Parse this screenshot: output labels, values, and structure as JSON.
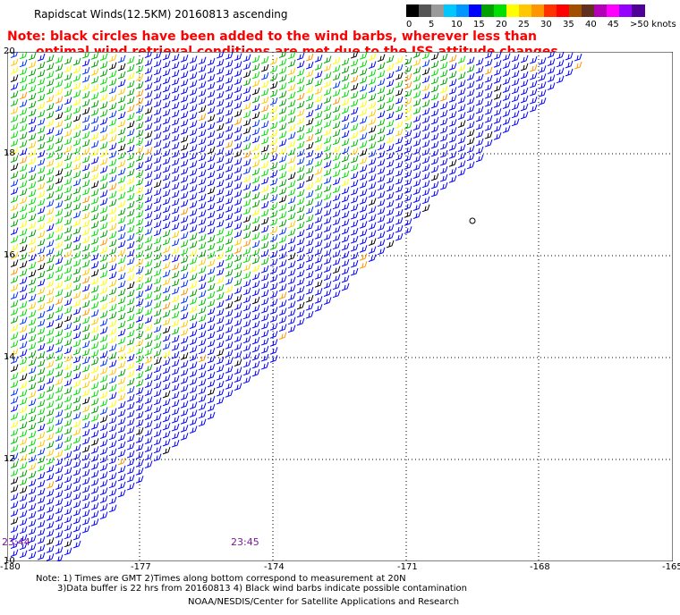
{
  "title": "Rapidscat Winds(12.5KM) 20160813 ascending",
  "note_line1": "Note: black circles have been added to the wind barbs, wherever less than",
  "note_line2": "optimal wind retrieval conditions are met due to the ISS attitude changes.",
  "colorbar": {
    "segments": [
      "#000000",
      "#555555",
      "#9a9a9a",
      "#00c8ff",
      "#0096ff",
      "#0000ff",
      "#00a000",
      "#00e000",
      "#ffff00",
      "#ffc800",
      "#ff9600",
      "#ff3200",
      "#ff0000",
      "#a05000",
      "#603020",
      "#b400b4",
      "#ff00ff",
      "#9600ff",
      "#500096"
    ],
    "labels": [
      "0",
      "5",
      "10",
      "15",
      "20",
      "25",
      "30",
      "35",
      "40",
      "45",
      ">50 knots"
    ]
  },
  "lat_labels": [
    "20",
    "18",
    "16",
    "14",
    "12",
    "10"
  ],
  "lon_labels": [
    "-180",
    "-177",
    "-174",
    "-171",
    "-168",
    "-165"
  ],
  "time_labels": [
    "23:44",
    "23:45"
  ],
  "footnote_line1": "Note: 1) Times are GMT 2)Times along bottom correspond to measurement at 20N",
  "footnote_line2": "3)Data buffer is 22 hrs from 20160813 4) Black wind barbs indicate possible contamination",
  "credit": "NOAA/NESDIS/Center for Satellite Applications and Research"
}
